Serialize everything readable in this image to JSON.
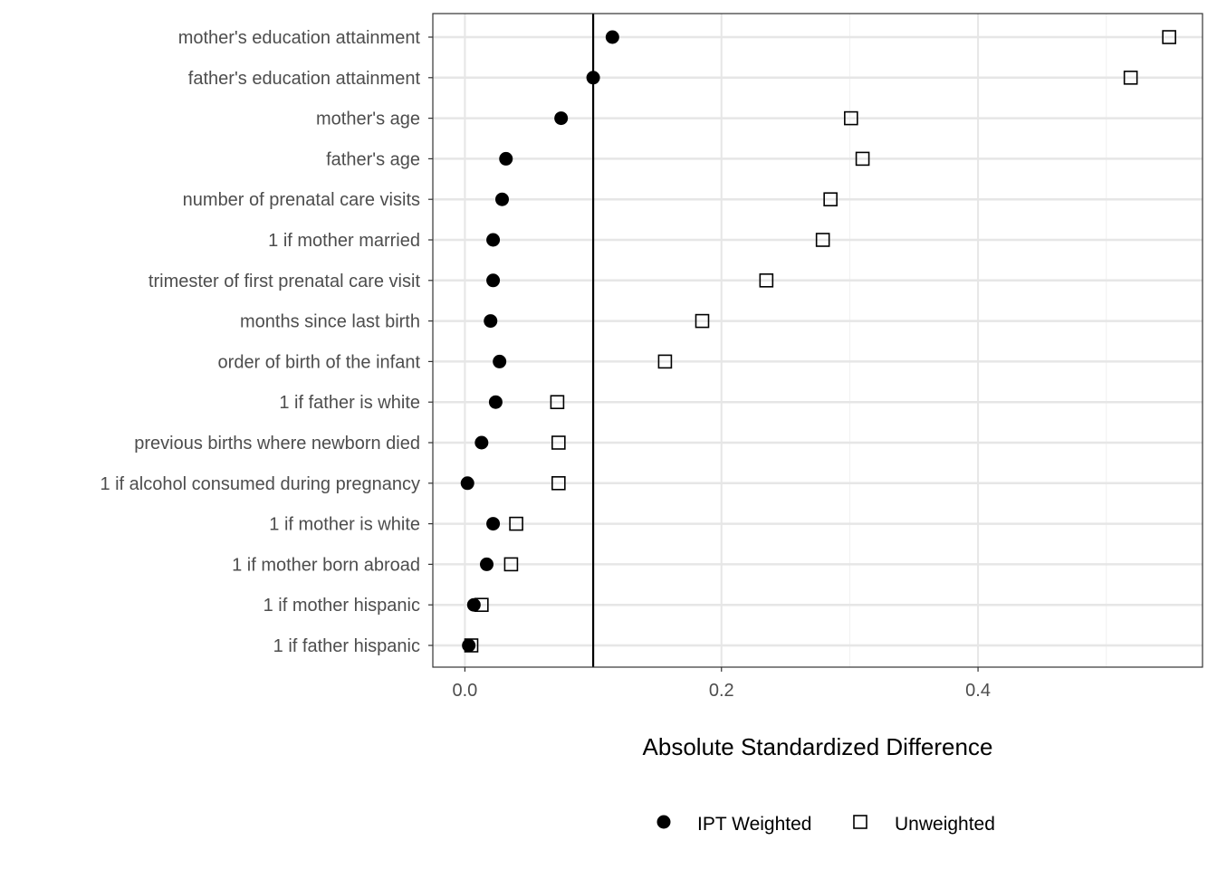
{
  "chart_data": {
    "type": "scatter",
    "title": "",
    "xlabel": "Absolute Standardized Difference",
    "ylabel": "",
    "xlim": [
      -0.025,
      0.575
    ],
    "x_ticks": [
      0.0,
      0.2,
      0.4
    ],
    "x_tick_labels": [
      "0.0",
      "0.2",
      "0.4"
    ],
    "reference_line_x": 0.1,
    "grid": true,
    "legend_position": "bottom",
    "categories": [
      "mother's education attainment",
      "father's education attainment",
      "mother's age",
      "father's age",
      "number of prenatal care visits",
      "1 if mother married",
      "trimester of first prenatal care visit",
      "months since last birth",
      "order of birth of the infant",
      "1 if father is white",
      "previous births where newborn died",
      "1 if alcohol consumed during pregnancy",
      "1 if mother is white",
      "1 if mother born abroad",
      "1 if mother hispanic",
      "1 if father hispanic"
    ],
    "series": [
      {
        "name": "IPT Weighted",
        "marker": "filled-circle",
        "color": "#000000",
        "values": [
          0.115,
          0.1,
          0.075,
          0.032,
          0.029,
          0.022,
          0.022,
          0.02,
          0.027,
          0.024,
          0.013,
          0.002,
          0.022,
          0.017,
          0.007,
          0.003
        ]
      },
      {
        "name": "Unweighted",
        "marker": "open-square",
        "color": "#000000",
        "values": [
          0.549,
          0.519,
          0.301,
          0.31,
          0.285,
          0.279,
          0.235,
          0.185,
          0.156,
          0.072,
          0.073,
          0.073,
          0.04,
          0.036,
          0.013,
          0.005
        ]
      }
    ]
  }
}
